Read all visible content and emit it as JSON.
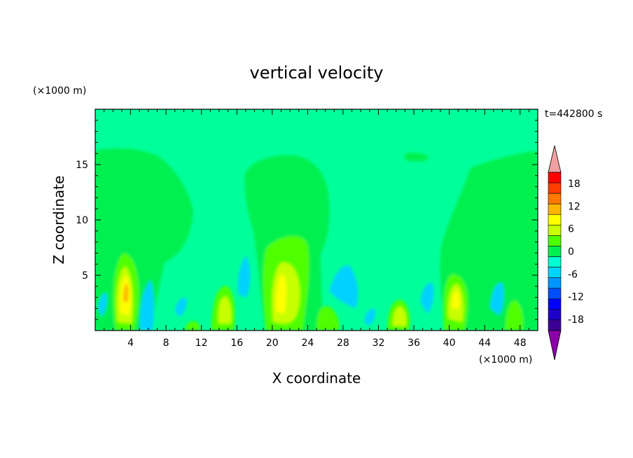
{
  "chart_data": {
    "type": "heatmap",
    "title": "vertical velocity",
    "xlabel": "X coordinate",
    "ylabel": "Z coordinate",
    "x_unit_label": "(×1000 m)",
    "y_unit_label": "(×1000 m)",
    "time_label": "t=442800 s",
    "xlim": [
      0,
      50
    ],
    "ylim": [
      0,
      20
    ],
    "xticks": [
      "4",
      "8",
      "12",
      "16",
      "20",
      "24",
      "28",
      "32",
      "36",
      "40",
      "44",
      "48"
    ],
    "yticks": [
      "5",
      "10",
      "15"
    ],
    "background_value": 0,
    "colorbar": {
      "tick_labels": [
        "18",
        "12",
        "6",
        "0",
        "-6",
        "-12",
        "-18"
      ],
      "levels": [
        -21,
        -18,
        -15,
        -12,
        -9,
        -6,
        -3,
        0,
        3,
        6,
        9,
        12,
        15,
        18,
        21
      ],
      "colors": [
        "#8b00a8",
        "#3c0096",
        "#1e00c8",
        "#0000ff",
        "#0050ff",
        "#0096ff",
        "#00d2ff",
        "#00ffd2",
        "#00f050",
        "#50ff00",
        "#c8ff00",
        "#ffff00",
        "#ffb400",
        "#ff7800",
        "#ff3c00",
        "#ff0000",
        "#f0a0a0"
      ]
    },
    "features": [
      {
        "kind": "updraft_plume",
        "x": 3.5,
        "z_top": 16.3,
        "z_base": 0
      },
      {
        "kind": "updraft_plume",
        "x": 21,
        "z_top": 15.5,
        "z_base": 0
      },
      {
        "kind": "updraft_plume",
        "x": 40.5,
        "z_top": 16.5,
        "z_base": 0
      },
      {
        "kind": "core_max",
        "x": 3.5,
        "z": 3.8,
        "value": 12
      },
      {
        "kind": "core_max",
        "x": 20.5,
        "z": 4.2,
        "value": 12
      },
      {
        "kind": "core_max",
        "x": 40.3,
        "z": 3.0,
        "value": 12
      },
      {
        "kind": "core_max",
        "x": 14.5,
        "z": 2.0,
        "value": 9
      },
      {
        "kind": "core_max",
        "x": 34.3,
        "z": 1.8,
        "value": 9
      }
    ]
  }
}
